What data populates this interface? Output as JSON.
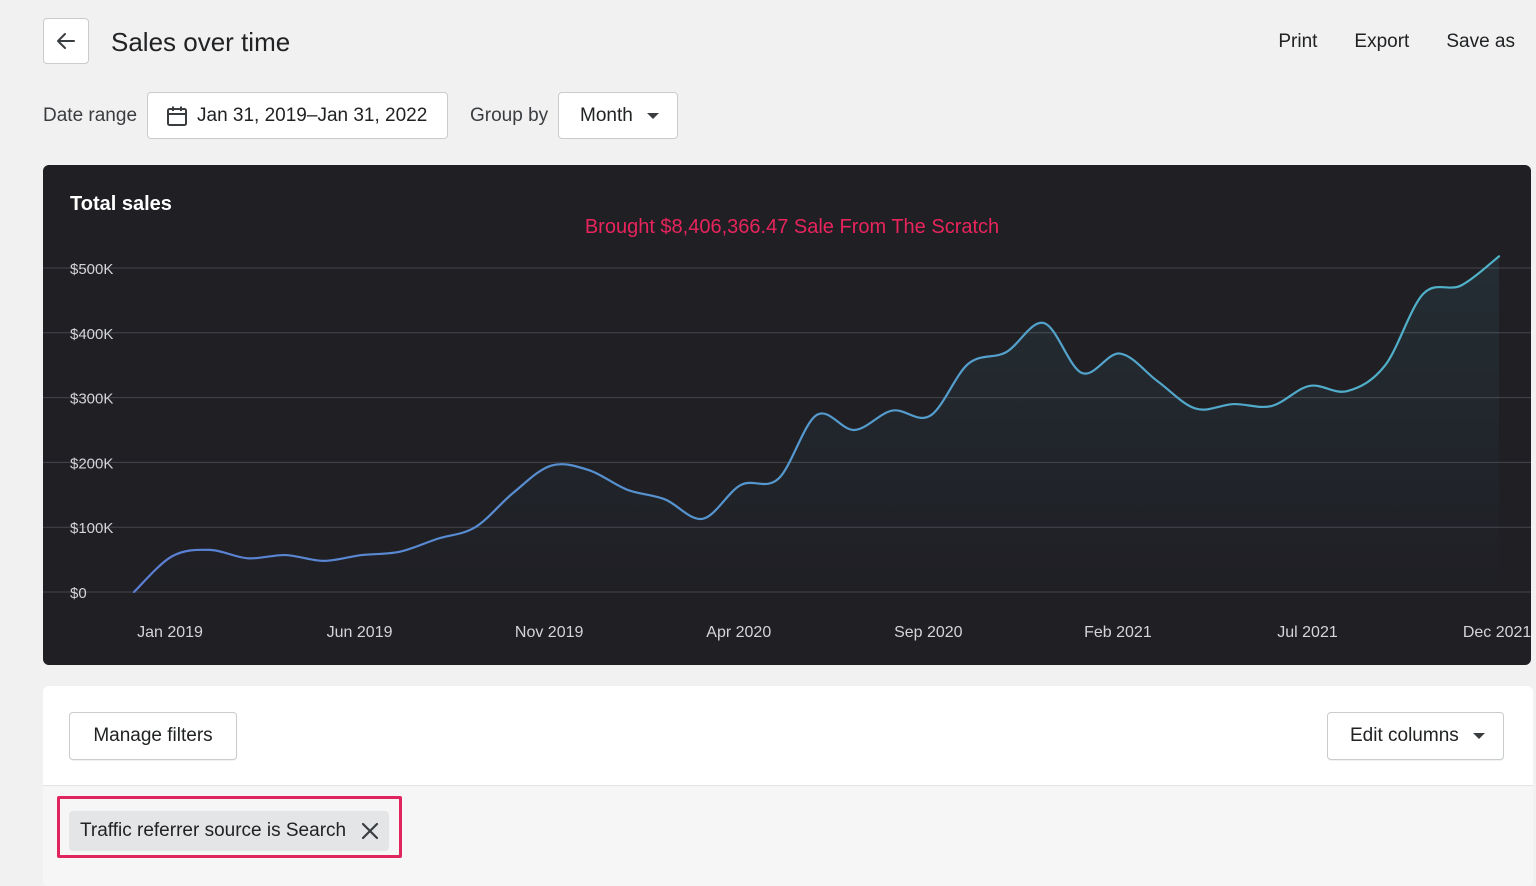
{
  "header": {
    "title": "Sales over time",
    "actions": [
      "Print",
      "Export",
      "Save as"
    ]
  },
  "controls": {
    "date_range_label": "Date range",
    "date_range_value": "Jan 31, 2019–Jan 31, 2022",
    "group_by_label": "Group by",
    "group_by_value": "Month"
  },
  "colors": {
    "accent": "#e8245c",
    "chart_bg": "#1f1f24",
    "line_start": "#5b7fd4",
    "line_end": "#4fb3c8"
  },
  "chart_data": {
    "type": "line",
    "title": "Total sales",
    "annotation": "Brought $8,406,366.47 Sale From The Scratch",
    "y_ticks": [
      "$0",
      "$100K",
      "$200K",
      "$300K",
      "$400K",
      "$500K"
    ],
    "x_ticks": [
      "Jan 2019",
      "Jun 2019",
      "Nov 2019",
      "Apr 2020",
      "Sep 2020",
      "Feb 2021",
      "Jul 2021",
      "Dec 2021"
    ],
    "ylim": [
      0,
      500000
    ],
    "grid": true,
    "series": [
      {
        "values": [
          0,
          55000,
          65000,
          52000,
          57000,
          48000,
          57000,
          62000,
          82000,
          100000,
          153000,
          195000,
          188000,
          158000,
          143000,
          113000,
          165000,
          175000,
          273000,
          250000,
          280000,
          272000,
          352000,
          370000,
          415000,
          338000,
          368000,
          325000,
          283000,
          290000,
          287000,
          318000,
          310000,
          350000,
          460000,
          473000,
          518000
        ]
      }
    ]
  },
  "table": {
    "manage_filters": "Manage filters",
    "edit_columns": "Edit columns",
    "active_filter": "Traffic referrer source is Search"
  }
}
